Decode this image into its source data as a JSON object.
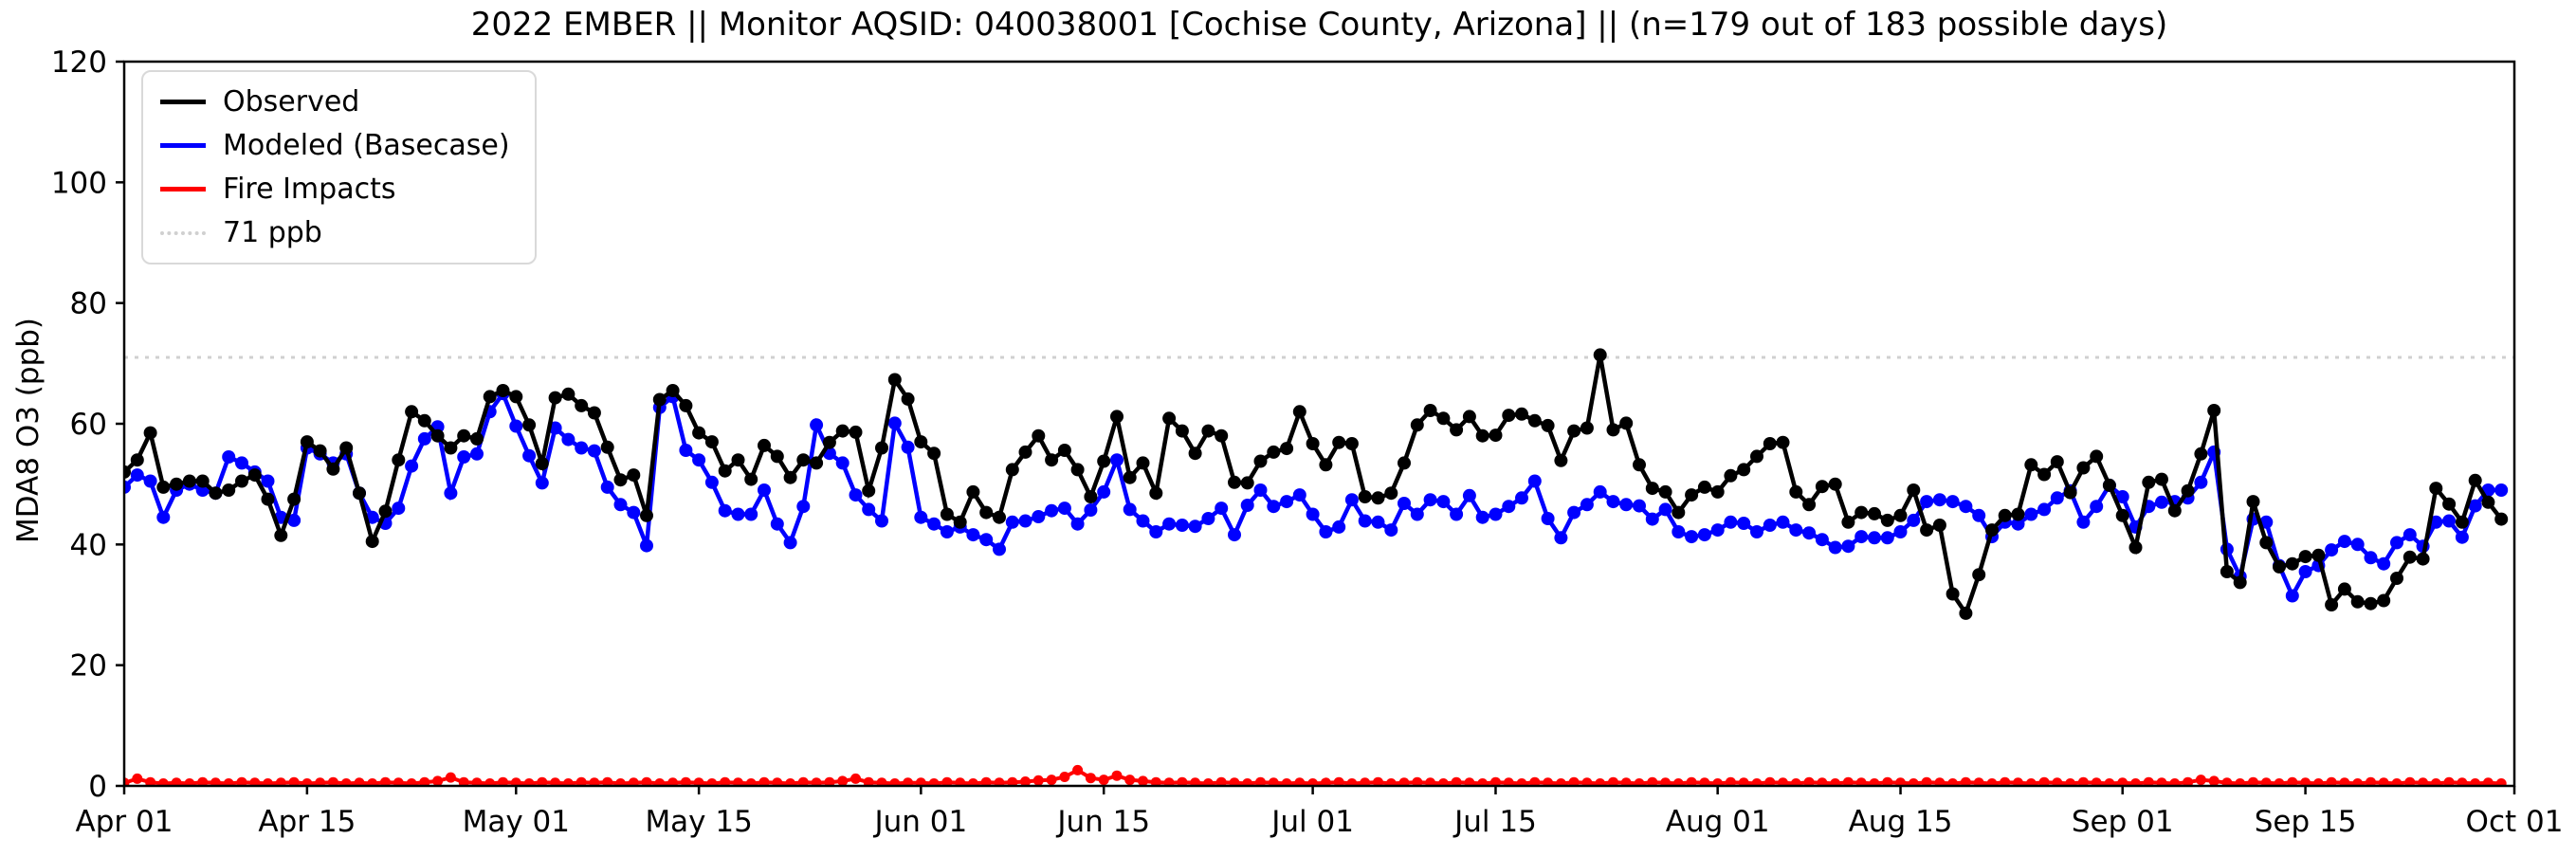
{
  "chart_data": {
    "type": "line",
    "title": "2022 EMBER || Monitor AQSID: 040038001 [Cochise County, Arizona] || (n=179 out of 183 possible days)",
    "xlabel": "",
    "ylabel": "MDA8 O3 (ppb)",
    "ylim": [
      0,
      120
    ],
    "y_ticks": [
      0,
      20,
      40,
      60,
      80,
      100,
      120
    ],
    "x_tick_labels": [
      "Apr 01",
      "Apr 15",
      "May 01",
      "May 15",
      "Jun 01",
      "Jun 15",
      "Jul 01",
      "Jul 15",
      "Aug 01",
      "Aug 15",
      "Sep 01",
      "Sep 15",
      "Oct 01"
    ],
    "x_tick_day_index": [
      0,
      14,
      30,
      44,
      61,
      75,
      91,
      105,
      122,
      136,
      153,
      167,
      183
    ],
    "n_days": 183,
    "date_range": "Apr 01 - Sep 30, 2022",
    "grid": false,
    "legend_position": "upper-left",
    "threshold": {
      "label": "71 ppb",
      "value": 71,
      "color": "#d0d0d0",
      "style": "dotted"
    },
    "series": [
      {
        "name": "Observed",
        "color": "#000000",
        "marker": "circle",
        "values": [
          52,
          54,
          58.5,
          49.5,
          50,
          50.5,
          50.5,
          48.5,
          49,
          50.5,
          51.5,
          47.5,
          41.5,
          47.5,
          57,
          55.5,
          52.5,
          56,
          48.5,
          40.5,
          45.5,
          54,
          62,
          60.5,
          58,
          56,
          58,
          57.5,
          64.5,
          65.5,
          64.5,
          59.8,
          53.4,
          64.3,
          64.9,
          63,
          61.8,
          56.1,
          50.7,
          51.5,
          44.8,
          64,
          65.5,
          63,
          58.5,
          57,
          52.2,
          54,
          50.8,
          56.4,
          54.6,
          51.1,
          54,
          53.5,
          56.9,
          58.8,
          58.6,
          48.9,
          56,
          67.3,
          64.1,
          57,
          55.1,
          45,
          43.7,
          48.7,
          45.3,
          44.5,
          52.4,
          55.3,
          58,
          54,
          55.6,
          52.4,
          47.9,
          53.8,
          61.2,
          51.1,
          53.5,
          48.5,
          60.9,
          58.8,
          55.1,
          58.8,
          58,
          50.3,
          50.2,
          53.8,
          55.3,
          55.9,
          62,
          56.7,
          53.2,
          56.9,
          56.7,
          47.9,
          47.7,
          48.5,
          53.5,
          59.8,
          62.2,
          60.9,
          59,
          61.2,
          58,
          58.1,
          61.4,
          61.6,
          60.5,
          59.7,
          53.9,
          58.8,
          59.3,
          71.4,
          59,
          60.1,
          53.2,
          49.3,
          48.7,
          45.3,
          48.2,
          49.5,
          48.7,
          51.4,
          52.4,
          54.6,
          56.7,
          56.9,
          48.7,
          46.6,
          49.6,
          50,
          43.7,
          45.3,
          45.1,
          44,
          44.8,
          49,
          42.4,
          43.2,
          31.8,
          28.6,
          35,
          42.4,
          44.8,
          45,
          53.2,
          51.6,
          53.7,
          48.6,
          52.7,
          54.6,
          49.8,
          44.8,
          39.5,
          50.3,
          50.8,
          45.6,
          48.9,
          55,
          62.2,
          35.5,
          33.7,
          47.1,
          40.3,
          36.3,
          36.8,
          38,
          38.2,
          30,
          32.6,
          30.5,
          30.2,
          30.7,
          34.4,
          37.9,
          37.6,
          49.3,
          46.7,
          43.7,
          50.6,
          47,
          44.2
        ]
      },
      {
        "name": "Modeled (Basecase)",
        "color": "#0000ff",
        "marker": "circle",
        "values": [
          49.5,
          51.5,
          50.5,
          44.5,
          49,
          50,
          49,
          48.5,
          54.5,
          53.5,
          52,
          50.5,
          44.5,
          44,
          56,
          55,
          53.5,
          55,
          48.5,
          44.5,
          43.5,
          46,
          53,
          57.5,
          59.5,
          48.5,
          54.5,
          55,
          62,
          65,
          59.6,
          54.7,
          50.2,
          59.3,
          57.4,
          56,
          55.5,
          49.5,
          46.6,
          45.3,
          39.8,
          62.7,
          64.5,
          55.6,
          54,
          50.3,
          45.6,
          45,
          45,
          49,
          43.4,
          40.3,
          46.3,
          59.8,
          55.1,
          53.5,
          48.2,
          45.8,
          43.9,
          60.1,
          56.1,
          44.5,
          43.4,
          42.1,
          42.9,
          41.6,
          40.8,
          39.2,
          43.7,
          43.9,
          44.6,
          45.6,
          46,
          43.4,
          45.7,
          48.7,
          54,
          45.8,
          43.9,
          42.1,
          43.4,
          43.2,
          43,
          44.3,
          46,
          41.6,
          46.5,
          49,
          46.3,
          47.1,
          48.2,
          45,
          42.1,
          42.9,
          47.4,
          43.9,
          43.7,
          42.4,
          46.8,
          45,
          47.4,
          47.1,
          45,
          48.1,
          44.5,
          45,
          46.3,
          47.7,
          50.5,
          44.3,
          41.1,
          45.3,
          46.6,
          48.7,
          47.1,
          46.6,
          46.4,
          44.2,
          45.8,
          42.1,
          41.3,
          41.6,
          42.4,
          43.7,
          43.5,
          42.1,
          43.2,
          43.7,
          42.4,
          41.9,
          40.8,
          39.5,
          39.7,
          41.3,
          41.1,
          41.1,
          42.1,
          44,
          47.1,
          47.4,
          47.1,
          46.3,
          44.8,
          41.3,
          43.7,
          43.4,
          45,
          45.8,
          47.7,
          48.9,
          43.7,
          46.3,
          49.8,
          47.9,
          42.9,
          46.3,
          47,
          47.1,
          47.7,
          50.3,
          55.3,
          39.2,
          34.7,
          44.2,
          43.7,
          36.5,
          31.5,
          35.5,
          36.5,
          39.1,
          40.5,
          40,
          37.8,
          36.8,
          40.3,
          41.6,
          39.7,
          43.7,
          43.9,
          41.2,
          46.4,
          49,
          49
        ]
      },
      {
        "name": "Fire Impacts",
        "color": "#ff0000",
        "marker": "circle",
        "values": [
          0.5,
          1.2,
          0.6,
          0.4,
          0.5,
          0.4,
          0.6,
          0.5,
          0.4,
          0.6,
          0.5,
          0.4,
          0.5,
          0.6,
          0.4,
          0.5,
          0.6,
          0.4,
          0.5,
          0.4,
          0.6,
          0.5,
          0.4,
          0.6,
          0.8,
          1.4,
          0.6,
          0.5,
          0.4,
          0.6,
          0.5,
          0.4,
          0.6,
          0.5,
          0.4,
          0.6,
          0.5,
          0.6,
          0.4,
          0.5,
          0.6,
          0.4,
          0.5,
          0.6,
          0.5,
          0.4,
          0.6,
          0.5,
          0.4,
          0.6,
          0.5,
          0.4,
          0.6,
          0.5,
          0.6,
          0.8,
          1.2,
          0.6,
          0.5,
          0.4,
          0.5,
          0.5,
          0.4,
          0.6,
          0.5,
          0.4,
          0.6,
          0.5,
          0.6,
          0.7,
          0.9,
          1.0,
          1.5,
          2.6,
          1.3,
          1.0,
          1.7,
          1.0,
          0.8,
          0.6,
          0.5,
          0.6,
          0.5,
          0.4,
          0.6,
          0.5,
          0.4,
          0.6,
          0.5,
          0.4,
          0.5,
          0.4,
          0.5,
          0.6,
          0.4,
          0.5,
          0.6,
          0.4,
          0.5,
          0.6,
          0.5,
          0.4,
          0.6,
          0.5,
          0.4,
          0.6,
          0.5,
          0.4,
          0.6,
          0.5,
          0.4,
          0.6,
          0.5,
          0.4,
          0.6,
          0.5,
          0.4,
          0.6,
          0.5,
          0.4,
          0.6,
          0.5,
          0.4,
          0.6,
          0.5,
          0.4,
          0.6,
          0.5,
          0.4,
          0.6,
          0.5,
          0.4,
          0.6,
          0.5,
          0.4,
          0.6,
          0.5,
          0.4,
          0.6,
          0.5,
          0.4,
          0.6,
          0.5,
          0.4,
          0.6,
          0.5,
          0.4,
          0.6,
          0.5,
          0.4,
          0.6,
          0.5,
          0.4,
          0.5,
          0.4,
          0.6,
          0.5,
          0.4,
          0.6,
          1.0,
          0.8,
          0.5,
          0.4,
          0.6,
          0.5,
          0.4,
          0.6,
          0.5,
          0.4,
          0.6,
          0.5,
          0.4,
          0.6,
          0.5,
          0.4,
          0.6,
          0.5,
          0.4,
          0.6,
          0.5,
          0.4,
          0.5,
          0.4
        ]
      }
    ]
  },
  "legend": {
    "items": [
      {
        "label": "Observed"
      },
      {
        "label": "Modeled (Basecase)"
      },
      {
        "label": "Fire Impacts"
      },
      {
        "label": "71 ppb"
      }
    ]
  }
}
